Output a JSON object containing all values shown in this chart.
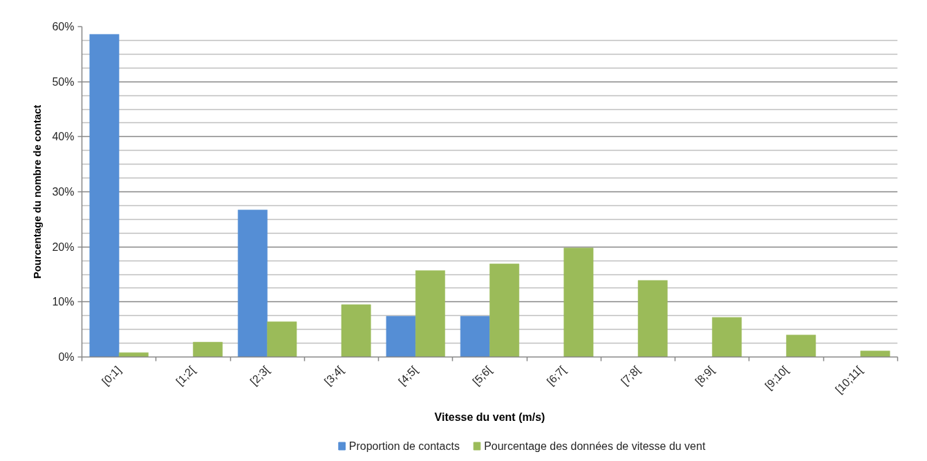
{
  "chart_data": {
    "type": "bar",
    "xlabel": "Vitesse du vent (m/s)",
    "ylabel": "Pourcentage du nombre de contact",
    "categories": [
      "[0;1]",
      "[1;2[",
      "[2;3[",
      "[3;4[",
      "[4;5[",
      "[5;6[",
      "[6;7[",
      "[7;8[",
      "[8;9[",
      "[9;10[",
      "[10;11["
    ],
    "series": [
      {
        "name": "Proportion de contacts",
        "color": "#558ed5",
        "values": [
          58.6,
          null,
          26.7,
          null,
          7.4,
          7.4,
          null,
          null,
          null,
          null,
          null
        ]
      },
      {
        "name": "Pourcentage des données de vitesse du vent",
        "color": "#9bbb59",
        "values": [
          0.8,
          2.7,
          6.4,
          9.5,
          15.7,
          16.9,
          19.8,
          13.9,
          7.2,
          4.0,
          1.1
        ]
      }
    ],
    "ylim": [
      0,
      60
    ],
    "yticks": [
      {
        "value": 0,
        "label": "0%"
      },
      {
        "value": 10,
        "label": "10%"
      },
      {
        "value": 20,
        "label": "20%"
      },
      {
        "value": 30,
        "label": "30%"
      },
      {
        "value": 40,
        "label": "40%"
      },
      {
        "value": 50,
        "label": "50%"
      },
      {
        "value": 60,
        "label": "60%"
      }
    ],
    "grid": "y",
    "legend": "bottom"
  }
}
